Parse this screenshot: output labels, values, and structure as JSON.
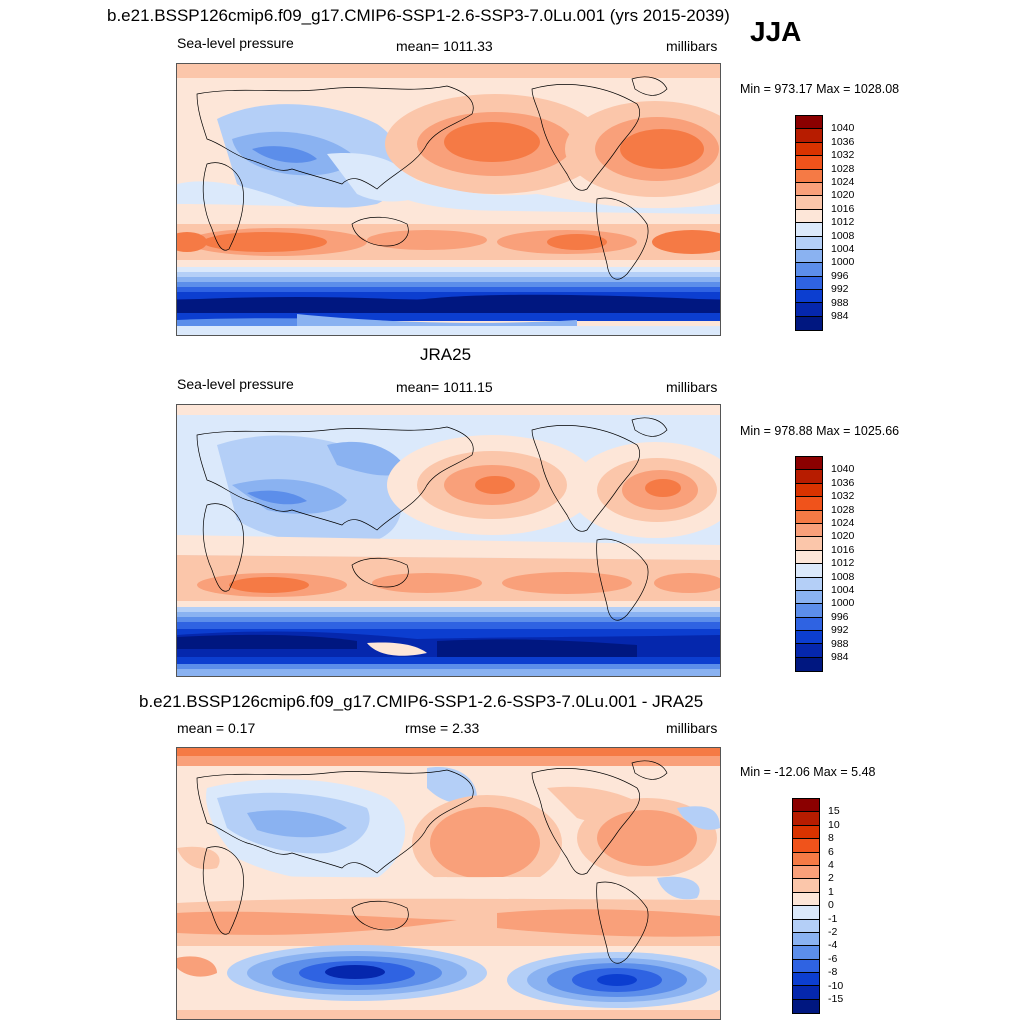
{
  "header": {
    "title": "b.e21.BSSP126cmip6.f09_g17.CMIP6-SSP1-2.6-SSP3-7.0Lu.001 (yrs 2015-2039)",
    "season": "JJA"
  },
  "panels": [
    {
      "id": "model",
      "title": "",
      "left_label": "Sea-level pressure",
      "center_label": "mean= 1011.33",
      "right_label": "millibars",
      "minmax": "Min = 973.17 Max = 1028.08"
    },
    {
      "id": "obs",
      "title": "JRA25",
      "left_label": "Sea-level pressure",
      "center_label": "mean= 1011.15",
      "right_label": "millibars",
      "minmax": "Min = 978.88 Max = 1025.66"
    },
    {
      "id": "diff",
      "title": "b.e21.BSSP126cmip6.f09_g17.CMIP6-SSP1-2.6-SSP3-7.0Lu.001 - JRA25",
      "left_label": "mean =   0.17",
      "center_label": "rmse =   2.33",
      "right_label": "millibars",
      "minmax": "Min = -12.06 Max =   5.48"
    }
  ],
  "colorbar_abs": {
    "labels": [
      "1040",
      "1036",
      "1032",
      "1028",
      "1024",
      "1020",
      "1016",
      "1012",
      "1008",
      "1004",
      "1000",
      "996",
      "992",
      "988",
      "984"
    ],
    "colors": [
      "#8b0000",
      "#b71c00",
      "#d93300",
      "#f0531b",
      "#f57a45",
      "#f9a07a",
      "#fbc6aa",
      "#fde6d8",
      "#dbe9fb",
      "#b4cff7",
      "#8ab2f1",
      "#5c8eea",
      "#2f63e2",
      "#0c3ed0",
      "#0527ad",
      "#001780"
    ]
  },
  "colorbar_diff": {
    "labels": [
      "15",
      "10",
      "8",
      "6",
      "4",
      "2",
      "1",
      "0",
      "-1",
      "-2",
      "-4",
      "-6",
      "-8",
      "-10",
      "-15"
    ],
    "colors": [
      "#8b0000",
      "#b71c00",
      "#d93300",
      "#f0531b",
      "#f57a45",
      "#f9a07a",
      "#fbc6aa",
      "#fde6d8",
      "#dbe9fb",
      "#b4cff7",
      "#8ab2f1",
      "#5c8eea",
      "#2f63e2",
      "#0c3ed0",
      "#0527ad",
      "#001780"
    ]
  }
}
